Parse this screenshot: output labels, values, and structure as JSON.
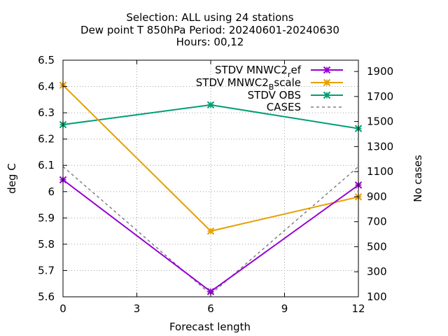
{
  "chart_data": {
    "type": "line",
    "title_lines": [
      "Selection: ALL using    24 stations",
      "Dew point T 850hPa   Period: 20240601-20240630",
      "Hours: 00,12"
    ],
    "xlabel": "Forecast length",
    "ylabel": "deg C",
    "y2label": "No cases",
    "xlim": [
      0,
      12
    ],
    "ylim": [
      5.6,
      6.5
    ],
    "y2lim": [
      100,
      1990
    ],
    "x_ticks": [
      0,
      3,
      6,
      9,
      12
    ],
    "y_ticks": [
      "5.6",
      "5.7",
      "5.8",
      "5.9",
      "6",
      "6.1",
      "6.2",
      "6.3",
      "6.4",
      "6.5"
    ],
    "y2_ticks": [
      100,
      300,
      500,
      700,
      900,
      1100,
      1300,
      1500,
      1700,
      1900
    ],
    "grid": true,
    "legend_position": "top-right",
    "series": [
      {
        "name": "STDV MNWC2",
        "name_sub": "r",
        "name_tail": "ef",
        "axis": "y1",
        "color": "#9400d3",
        "style": "solid",
        "marker": "x",
        "x": [
          0,
          6,
          12
        ],
        "values": [
          6.045,
          5.62,
          6.025
        ]
      },
      {
        "name": "STDV MNWC2",
        "name_sub": "B",
        "name_tail": "scale",
        "axis": "y1",
        "color": "#e69f00",
        "style": "solid",
        "marker": "x",
        "x": [
          0,
          6,
          12
        ],
        "values": [
          6.405,
          5.85,
          5.98
        ]
      },
      {
        "name": "STDV OBS",
        "axis": "y1",
        "color": "#009e73",
        "style": "solid",
        "marker": "x",
        "x": [
          0,
          6,
          12
        ],
        "values": [
          6.255,
          6.33,
          6.24
        ]
      },
      {
        "name": "CASES",
        "axis": "y2",
        "color": "#808080",
        "style": "dashed",
        "marker": "none",
        "x": [
          0,
          6,
          12
        ],
        "values": [
          1140,
          120,
          1140
        ]
      }
    ]
  }
}
